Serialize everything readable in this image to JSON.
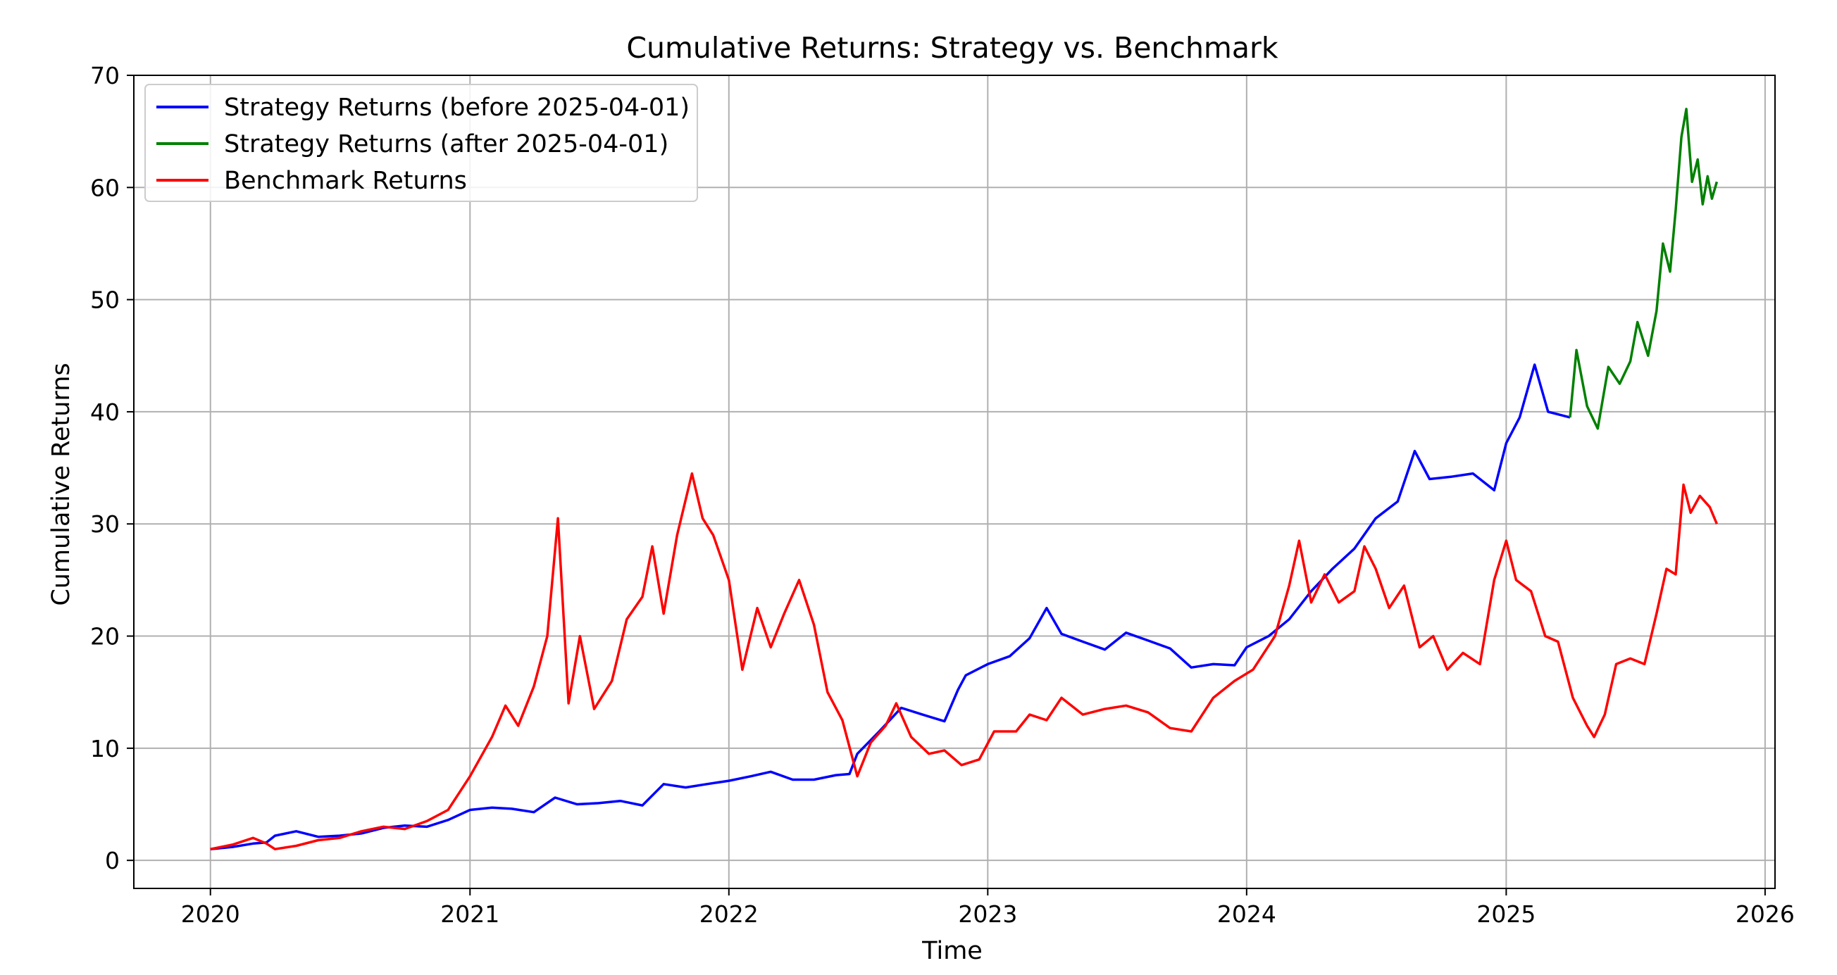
{
  "chart_data": {
    "type": "line",
    "title": "Cumulative Returns: Strategy vs. Benchmark",
    "xlabel": "Time",
    "ylabel": "Cumulative Returns",
    "xlim": [
      "2019-09-15",
      "2026-01-15"
    ],
    "ylim": [
      -2.5,
      70
    ],
    "x_ticks": [
      "2020",
      "2021",
      "2022",
      "2023",
      "2024",
      "2025",
      "2026"
    ],
    "y_ticks": [
      0,
      10,
      20,
      30,
      40,
      50,
      60,
      70
    ],
    "grid": true,
    "legend_position": "upper-left",
    "series": [
      {
        "name": "Strategy Returns (before 2025-04-01)",
        "color": "#0000ff",
        "points": [
          [
            "2020-01-01",
            1.0
          ],
          [
            "2020-02-01",
            1.2
          ],
          [
            "2020-03-01",
            1.5
          ],
          [
            "2020-03-20",
            1.6
          ],
          [
            "2020-04-01",
            2.2
          ],
          [
            "2020-05-01",
            2.6
          ],
          [
            "2020-06-01",
            2.1
          ],
          [
            "2020-07-01",
            2.2
          ],
          [
            "2020-08-01",
            2.4
          ],
          [
            "2020-09-01",
            2.9
          ],
          [
            "2020-10-01",
            3.1
          ],
          [
            "2020-11-01",
            3.0
          ],
          [
            "2020-12-01",
            3.6
          ],
          [
            "2021-01-01",
            4.5
          ],
          [
            "2021-02-01",
            4.7
          ],
          [
            "2021-03-01",
            4.6
          ],
          [
            "2021-04-01",
            4.3
          ],
          [
            "2021-05-01",
            5.6
          ],
          [
            "2021-06-01",
            5.0
          ],
          [
            "2021-07-01",
            5.1
          ],
          [
            "2021-08-01",
            5.3
          ],
          [
            "2021-09-01",
            4.9
          ],
          [
            "2021-10-01",
            6.8
          ],
          [
            "2021-11-01",
            6.5
          ],
          [
            "2021-12-01",
            6.8
          ],
          [
            "2022-01-01",
            7.1
          ],
          [
            "2022-02-01",
            7.5
          ],
          [
            "2022-03-01",
            7.9
          ],
          [
            "2022-04-01",
            7.2
          ],
          [
            "2022-05-01",
            7.2
          ],
          [
            "2022-06-01",
            7.6
          ],
          [
            "2022-06-20",
            7.7
          ],
          [
            "2022-07-01",
            9.5
          ],
          [
            "2022-08-01",
            11.5
          ],
          [
            "2022-09-01",
            13.6
          ],
          [
            "2022-10-01",
            13.0
          ],
          [
            "2022-11-01",
            12.4
          ],
          [
            "2022-11-20",
            15.2
          ],
          [
            "2022-12-01",
            16.5
          ],
          [
            "2023-01-01",
            17.5
          ],
          [
            "2023-02-01",
            18.2
          ],
          [
            "2023-03-01",
            19.8
          ],
          [
            "2023-03-25",
            22.5
          ],
          [
            "2023-04-15",
            20.2
          ],
          [
            "2023-05-15",
            19.5
          ],
          [
            "2023-06-15",
            18.8
          ],
          [
            "2023-07-15",
            20.3
          ],
          [
            "2023-08-15",
            19.6
          ],
          [
            "2023-09-15",
            18.9
          ],
          [
            "2023-10-15",
            17.2
          ],
          [
            "2023-11-15",
            17.5
          ],
          [
            "2023-12-15",
            17.4
          ],
          [
            "2024-01-01",
            19.0
          ],
          [
            "2024-02-01",
            20.0
          ],
          [
            "2024-03-01",
            21.5
          ],
          [
            "2024-04-01",
            24.0
          ],
          [
            "2024-05-01",
            26.0
          ],
          [
            "2024-06-01",
            27.8
          ],
          [
            "2024-07-01",
            30.5
          ],
          [
            "2024-08-01",
            32.0
          ],
          [
            "2024-08-25",
            36.5
          ],
          [
            "2024-09-15",
            34.0
          ],
          [
            "2024-10-15",
            34.2
          ],
          [
            "2024-11-15",
            34.5
          ],
          [
            "2024-12-15",
            33.0
          ],
          [
            "2025-01-01",
            37.2
          ],
          [
            "2025-01-20",
            39.5
          ],
          [
            "2025-02-10",
            44.2
          ],
          [
            "2025-03-01",
            40.0
          ],
          [
            "2025-04-01",
            39.5
          ]
        ]
      },
      {
        "name": "Strategy Returns (after 2025-04-01)",
        "color": "#008000",
        "points": [
          [
            "2025-04-01",
            39.5
          ],
          [
            "2025-04-10",
            45.5
          ],
          [
            "2025-04-25",
            40.5
          ],
          [
            "2025-05-10",
            38.5
          ],
          [
            "2025-05-25",
            44.0
          ],
          [
            "2025-06-10",
            42.5
          ],
          [
            "2025-06-25",
            44.5
          ],
          [
            "2025-07-05",
            48.0
          ],
          [
            "2025-07-20",
            45.0
          ],
          [
            "2025-08-01",
            49.0
          ],
          [
            "2025-08-10",
            55.0
          ],
          [
            "2025-08-20",
            52.5
          ],
          [
            "2025-08-28",
            58.0
          ],
          [
            "2025-09-05",
            64.5
          ],
          [
            "2025-09-12",
            67.0
          ],
          [
            "2025-09-20",
            60.5
          ],
          [
            "2025-09-28",
            62.5
          ],
          [
            "2025-10-05",
            58.5
          ],
          [
            "2025-10-12",
            61.0
          ],
          [
            "2025-10-18",
            59.0
          ],
          [
            "2025-10-25",
            60.5
          ]
        ]
      },
      {
        "name": "Benchmark Returns",
        "color": "#ff0000",
        "points": [
          [
            "2020-01-01",
            1.0
          ],
          [
            "2020-02-01",
            1.4
          ],
          [
            "2020-03-01",
            2.0
          ],
          [
            "2020-03-20",
            1.5
          ],
          [
            "2020-04-01",
            1.0
          ],
          [
            "2020-05-01",
            1.3
          ],
          [
            "2020-06-01",
            1.8
          ],
          [
            "2020-07-01",
            2.0
          ],
          [
            "2020-08-01",
            2.6
          ],
          [
            "2020-09-01",
            3.0
          ],
          [
            "2020-10-01",
            2.8
          ],
          [
            "2020-11-01",
            3.5
          ],
          [
            "2020-12-01",
            4.5
          ],
          [
            "2021-01-01",
            7.5
          ],
          [
            "2021-02-01",
            11.0
          ],
          [
            "2021-02-20",
            13.8
          ],
          [
            "2021-03-10",
            12.0
          ],
          [
            "2021-04-01",
            15.5
          ],
          [
            "2021-04-20",
            20.0
          ],
          [
            "2021-05-05",
            30.5
          ],
          [
            "2021-05-20",
            14.0
          ],
          [
            "2021-06-05",
            20.0
          ],
          [
            "2021-06-25",
            13.5
          ],
          [
            "2021-07-20",
            16.0
          ],
          [
            "2021-08-10",
            21.5
          ],
          [
            "2021-09-01",
            23.5
          ],
          [
            "2021-09-15",
            28.0
          ],
          [
            "2021-10-01",
            22.0
          ],
          [
            "2021-10-20",
            29.0
          ],
          [
            "2021-11-10",
            34.5
          ],
          [
            "2021-11-25",
            30.5
          ],
          [
            "2021-12-10",
            29.0
          ],
          [
            "2022-01-01",
            25.0
          ],
          [
            "2022-01-20",
            17.0
          ],
          [
            "2022-02-10",
            22.5
          ],
          [
            "2022-03-01",
            19.0
          ],
          [
            "2022-03-20",
            22.0
          ],
          [
            "2022-04-10",
            25.0
          ],
          [
            "2022-05-01",
            21.0
          ],
          [
            "2022-05-20",
            15.0
          ],
          [
            "2022-06-10",
            12.5
          ],
          [
            "2022-07-01",
            7.5
          ],
          [
            "2022-07-20",
            10.5
          ],
          [
            "2022-08-10",
            12.0
          ],
          [
            "2022-08-25",
            14.0
          ],
          [
            "2022-09-15",
            11.0
          ],
          [
            "2022-10-10",
            9.5
          ],
          [
            "2022-11-01",
            9.8
          ],
          [
            "2022-11-25",
            8.5
          ],
          [
            "2022-12-20",
            9.0
          ],
          [
            "2023-01-10",
            11.5
          ],
          [
            "2023-02-10",
            11.5
          ],
          [
            "2023-03-01",
            13.0
          ],
          [
            "2023-03-25",
            12.5
          ],
          [
            "2023-04-15",
            14.5
          ],
          [
            "2023-05-15",
            13.0
          ],
          [
            "2023-06-15",
            13.5
          ],
          [
            "2023-07-15",
            13.8
          ],
          [
            "2023-08-15",
            13.2
          ],
          [
            "2023-09-15",
            11.8
          ],
          [
            "2023-10-15",
            11.5
          ],
          [
            "2023-11-15",
            14.5
          ],
          [
            "2023-12-15",
            16.0
          ],
          [
            "2024-01-10",
            17.0
          ],
          [
            "2024-02-10",
            20.0
          ],
          [
            "2024-03-01",
            24.5
          ],
          [
            "2024-03-15",
            28.5
          ],
          [
            "2024-04-01",
            23.0
          ],
          [
            "2024-04-20",
            25.5
          ],
          [
            "2024-05-10",
            23.0
          ],
          [
            "2024-06-01",
            24.0
          ],
          [
            "2024-06-15",
            28.0
          ],
          [
            "2024-07-01",
            26.0
          ],
          [
            "2024-07-20",
            22.5
          ],
          [
            "2024-08-10",
            24.5
          ],
          [
            "2024-09-01",
            19.0
          ],
          [
            "2024-09-20",
            20.0
          ],
          [
            "2024-10-10",
            17.0
          ],
          [
            "2024-11-01",
            18.5
          ],
          [
            "2024-11-25",
            17.5
          ],
          [
            "2024-12-15",
            25.0
          ],
          [
            "2025-01-01",
            28.5
          ],
          [
            "2025-01-15",
            25.0
          ],
          [
            "2025-02-05",
            24.0
          ],
          [
            "2025-02-25",
            20.0
          ],
          [
            "2025-03-15",
            19.5
          ],
          [
            "2025-04-05",
            14.5
          ],
          [
            "2025-04-25",
            12.0
          ],
          [
            "2025-05-05",
            11.0
          ],
          [
            "2025-05-20",
            13.0
          ],
          [
            "2025-06-05",
            17.5
          ],
          [
            "2025-06-25",
            18.0
          ],
          [
            "2025-07-15",
            17.5
          ],
          [
            "2025-08-01",
            22.0
          ],
          [
            "2025-08-15",
            26.0
          ],
          [
            "2025-08-28",
            25.5
          ],
          [
            "2025-09-08",
            33.5
          ],
          [
            "2025-09-18",
            31.0
          ],
          [
            "2025-10-01",
            32.5
          ],
          [
            "2025-10-15",
            31.5
          ],
          [
            "2025-10-25",
            30.0
          ]
        ]
      }
    ]
  }
}
